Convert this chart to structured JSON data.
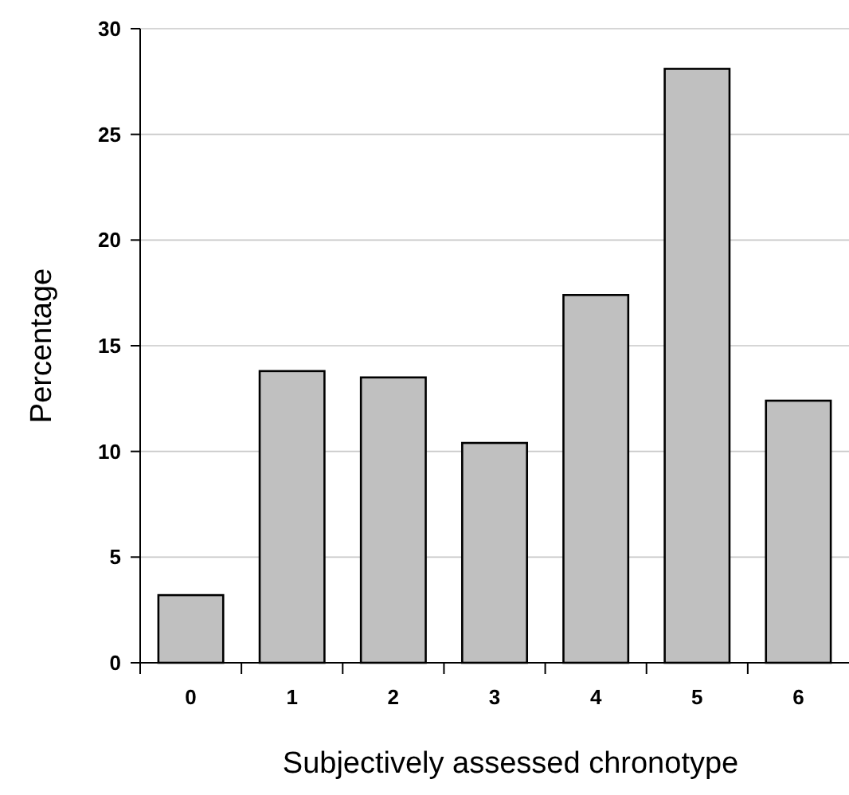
{
  "chart_data": {
    "type": "bar",
    "xlabel": "Subjectively assessed chronotype",
    "ylabel": "Percentage",
    "categories": [
      "0",
      "1",
      "2",
      "3",
      "4",
      "5",
      "6"
    ],
    "values": [
      3.2,
      13.8,
      13.5,
      10.4,
      17.4,
      28.1,
      12.4
    ],
    "color": "#c0c0c0",
    "ylim": [
      0,
      30
    ],
    "yticks": [
      0,
      5,
      10,
      15,
      20,
      25,
      30
    ],
    "grid": "y"
  }
}
